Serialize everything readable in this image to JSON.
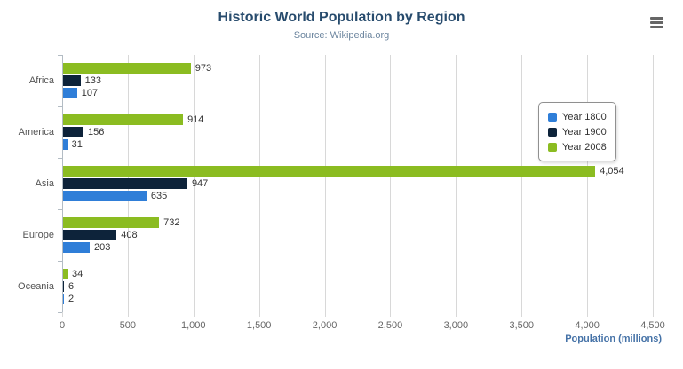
{
  "colors": {
    "title": "#274b6d",
    "subtitle": "#6d869f",
    "axis-title": "#4572a7",
    "grid": "#d8d8d8",
    "axis-line": "#b3bcc4",
    "tick-label": "#666666",
    "category-label": "#555555",
    "data-label": "#333333",
    "legend-text": "#333333",
    "legend-border": "#909090",
    "menu-icon": "#666666"
  },
  "icons": {
    "export_menu": "hamburger-icon"
  },
  "chart_data": {
    "type": "bar",
    "title": "Historic World Population by Region",
    "subtitle": "Source: Wikipedia.org",
    "categories": [
      "Africa",
      "America",
      "Asia",
      "Europe",
      "Oceania"
    ],
    "series": [
      {
        "name": "Year 1800",
        "color": "#2f7ed8",
        "values": [
          107,
          31,
          635,
          203,
          2
        ]
      },
      {
        "name": "Year 1900",
        "color": "#0d233a",
        "values": [
          133,
          156,
          947,
          408,
          6
        ]
      },
      {
        "name": "Year 2008",
        "color": "#8bbc21",
        "values": [
          973,
          914,
          4054,
          732,
          34
        ]
      }
    ],
    "bar_visual_order_top_to_bottom": [
      "Year 2008",
      "Year 1900",
      "Year 1800"
    ],
    "xlabel": "Population (millions)",
    "xlim": [
      0,
      4500
    ],
    "xticks": [
      0,
      500,
      1000,
      1500,
      2000,
      2500,
      3000,
      3500,
      4000,
      4500
    ],
    "grid": true,
    "legend_position": "right",
    "legend_items": [
      "Year 1800",
      "Year 1900",
      "Year 2008"
    ]
  }
}
